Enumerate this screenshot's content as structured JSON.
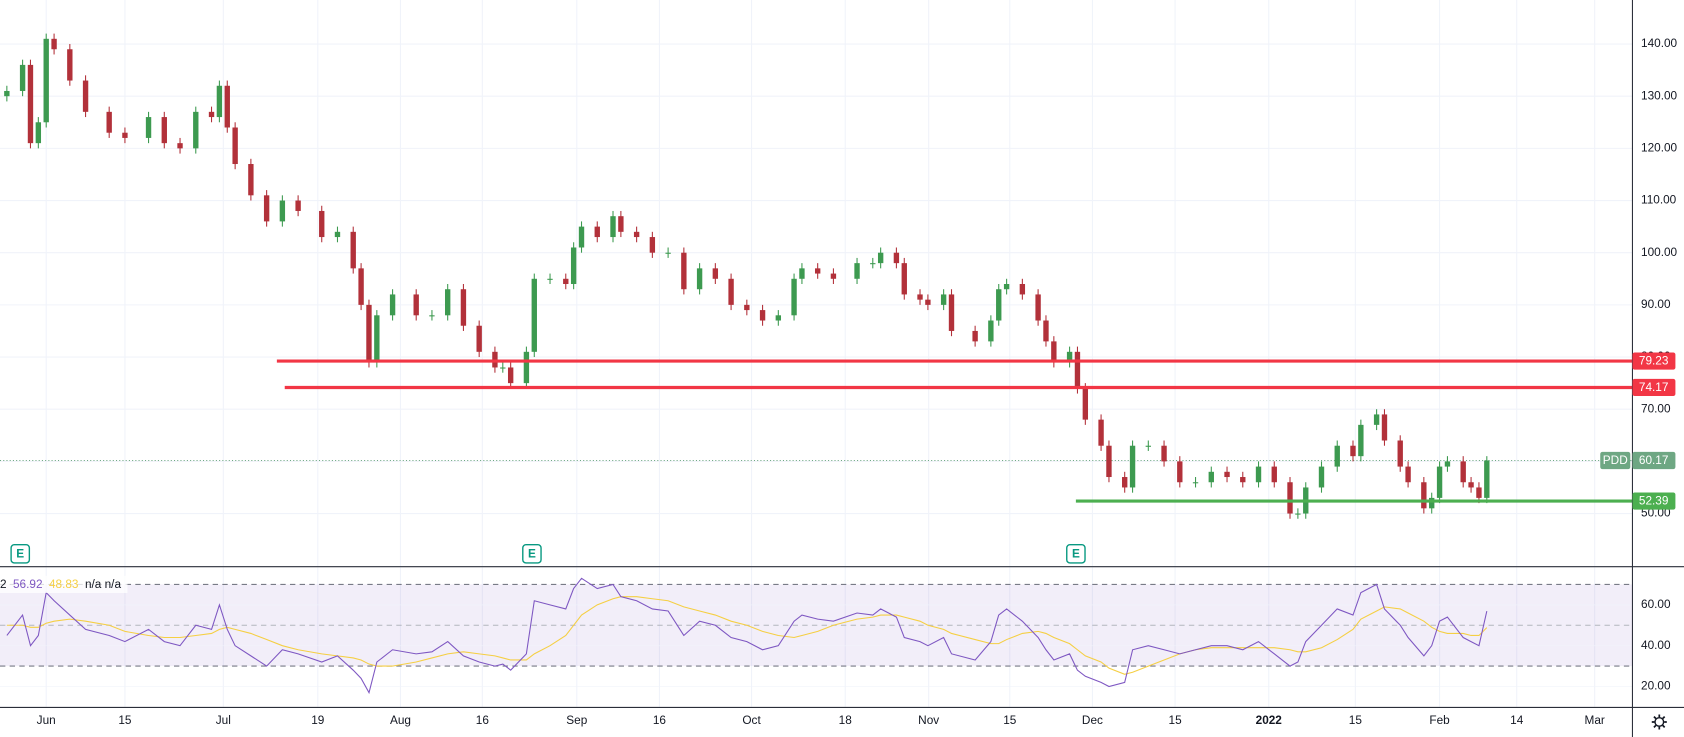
{
  "chart_data": {
    "type": "candlestick",
    "symbol": "PDD",
    "up_color": "#3d9a50",
    "down_color": "#b2313a",
    "last_color": "#6ea783",
    "grid": true,
    "xlim": [
      -5.87,
      201.5
    ],
    "ylim": [
      39.91,
      148.44
    ],
    "yticks": [
      {
        "value": 50,
        "label": "50.00"
      },
      {
        "value": 60,
        "label": "60.00"
      },
      {
        "value": 70,
        "label": "70.00"
      },
      {
        "value": 80,
        "label": "80.00"
      },
      {
        "value": 90,
        "label": "90.00"
      },
      {
        "value": 100,
        "label": "100.00"
      },
      {
        "value": 110,
        "label": "110.00"
      },
      {
        "value": 120,
        "label": "120.00"
      },
      {
        "value": 130,
        "label": "130.00"
      },
      {
        "value": 140,
        "label": "140.00"
      }
    ],
    "xticks": [
      {
        "value": 0,
        "label": "Jun"
      },
      {
        "value": 10,
        "label": "15"
      },
      {
        "value": 22.5,
        "label": "Jul"
      },
      {
        "value": 34.5,
        "label": "19"
      },
      {
        "value": 45,
        "label": "Aug"
      },
      {
        "value": 55.4,
        "label": "16"
      },
      {
        "value": 67.4,
        "label": "Sep"
      },
      {
        "value": 77.9,
        "label": "16"
      },
      {
        "value": 89.6,
        "label": "Oct"
      },
      {
        "value": 101.5,
        "label": "18"
      },
      {
        "value": 112.1,
        "label": "Nov"
      },
      {
        "value": 122.4,
        "label": "15"
      },
      {
        "value": 132.9,
        "label": "Dec"
      },
      {
        "value": 143.4,
        "label": "15"
      },
      {
        "value": 155.3,
        "label": "2022"
      },
      {
        "value": 166.3,
        "label": "15"
      },
      {
        "value": 177,
        "label": "Feb"
      },
      {
        "value": 186.8,
        "label": "14"
      },
      {
        "value": 196.7,
        "label": "Mar"
      }
    ],
    "x": [
      -5,
      -3,
      -2,
      -1,
      0,
      1,
      3,
      5,
      8,
      10,
      13,
      15,
      17,
      19,
      21,
      22,
      23,
      24,
      26,
      28,
      30,
      32,
      35,
      37,
      39,
      40,
      41,
      42,
      44,
      47,
      49,
      51,
      53,
      55,
      57,
      58,
      59,
      61,
      62,
      64,
      66,
      67,
      68,
      70,
      72,
      73,
      75,
      77,
      79,
      81,
      83,
      85,
      87,
      89,
      91,
      93,
      95,
      96,
      98,
      100,
      103,
      105,
      106,
      108,
      109,
      111,
      112,
      114,
      115,
      118,
      120,
      121,
      122,
      124,
      126,
      127,
      128,
      130,
      131,
      132,
      134,
      135,
      137,
      138,
      140,
      142,
      144,
      146,
      148,
      150,
      152,
      154,
      156,
      158,
      159,
      160,
      162,
      164,
      166,
      167,
      169,
      170,
      172,
      173,
      175,
      176,
      177,
      178,
      180,
      181,
      182,
      183
    ],
    "open": [
      130,
      131,
      136,
      121,
      125,
      141,
      139,
      133,
      127,
      123,
      122,
      126,
      121,
      120,
      127,
      126,
      132,
      124,
      117,
      111,
      106,
      110,
      108,
      103,
      104,
      97,
      90,
      79,
      88,
      92,
      88,
      88,
      93,
      86,
      81,
      78,
      78,
      75,
      81,
      95,
      95,
      94,
      101,
      105,
      103,
      107,
      104,
      103,
      100,
      100,
      93,
      97,
      95,
      90,
      89,
      87,
      88,
      95,
      97,
      96,
      95,
      98,
      98,
      100,
      98,
      92,
      91,
      90,
      92,
      85,
      83,
      87,
      93,
      94,
      92,
      87,
      83,
      79,
      81,
      74,
      68,
      63,
      57,
      55,
      63,
      63,
      60,
      56,
      56,
      58,
      57,
      56,
      59,
      56,
      50,
      50,
      55,
      59,
      63,
      61,
      67,
      69,
      64,
      59,
      56,
      51,
      53,
      59,
      60,
      56,
      55,
      53
    ],
    "high": [
      132,
      137,
      137,
      126,
      142,
      142,
      140,
      134,
      128,
      124,
      127,
      127,
      122,
      128,
      128,
      133,
      133,
      125,
      118,
      112,
      111,
      111,
      109,
      105,
      105,
      98,
      91,
      89,
      93,
      93,
      89,
      94,
      94,
      87,
      82,
      79,
      79,
      82,
      96,
      96,
      96,
      102,
      106,
      106,
      108,
      108,
      105,
      104,
      101,
      101,
      98,
      98,
      96,
      91,
      90,
      89,
      96,
      98,
      98,
      97,
      99,
      99,
      101,
      101,
      99,
      93,
      92,
      93,
      93,
      86,
      88,
      94,
      95,
      95,
      93,
      88,
      84,
      82,
      82,
      75,
      69,
      64,
      58,
      64,
      64,
      64,
      61,
      57,
      59,
      59,
      58,
      60,
      60,
      57,
      51,
      56,
      60,
      64,
      64,
      68,
      70,
      70,
      65,
      60,
      57,
      54,
      60,
      61,
      61,
      57,
      56,
      61
    ],
    "low": [
      129,
      130,
      120,
      120,
      124,
      138,
      132,
      126,
      122,
      121,
      121,
      120,
      119,
      119,
      125,
      125,
      123,
      116,
      110,
      105,
      105,
      107,
      102,
      102,
      96,
      89,
      78,
      78,
      87,
      87,
      87,
      87,
      85,
      80,
      77,
      77,
      74,
      74,
      80,
      94,
      93,
      93,
      100,
      102,
      102,
      103,
      102,
      99,
      99,
      92,
      92,
      94,
      89,
      88,
      86,
      86,
      87,
      94,
      95,
      94,
      94,
      97,
      97,
      97,
      91,
      90,
      89,
      89,
      84,
      82,
      82,
      86,
      92,
      91,
      86,
      82,
      78,
      78,
      73,
      67,
      62,
      56,
      54,
      54,
      62,
      59,
      55,
      55,
      55,
      56,
      55,
      55,
      55,
      49,
      49,
      49,
      54,
      58,
      60,
      60,
      66,
      63,
      58,
      55,
      50,
      50,
      52,
      58,
      55,
      54,
      52,
      52
    ],
    "close": [
      131,
      136,
      121,
      125,
      141,
      139,
      133,
      127,
      123,
      122,
      126,
      121,
      120,
      127,
      126,
      132,
      124,
      117,
      111,
      106,
      110,
      108,
      103,
      104,
      97,
      90,
      79,
      88,
      92,
      88,
      88,
      93,
      86,
      81,
      78,
      78,
      75,
      81,
      95,
      95,
      94,
      101,
      105,
      103,
      107,
      104,
      103,
      100,
      100,
      93,
      97,
      95,
      90,
      89,
      87,
      88,
      95,
      97,
      96,
      95,
      98,
      98,
      100,
      98,
      92,
      91,
      90,
      92,
      85,
      83,
      87,
      93,
      94,
      92,
      87,
      83,
      79,
      81,
      74,
      68,
      63,
      57,
      55,
      63,
      63,
      60,
      56,
      56,
      58,
      57,
      56,
      59,
      56,
      50,
      50,
      55,
      59,
      63,
      61,
      67,
      69,
      64,
      59,
      56,
      51,
      53,
      59,
      60,
      56,
      55,
      53,
      60.17
    ],
    "levels": [
      {
        "value": 79.23,
        "start": 29.3,
        "color": "#f23645"
      },
      {
        "value": 74.17,
        "start": 30.3,
        "color": "#f23645"
      },
      {
        "value": 52.39,
        "start": 130.8,
        "color": "#4caf50"
      }
    ],
    "events": [
      {
        "x": -3.3,
        "label": "E"
      },
      {
        "x": 61.7,
        "label": "E"
      },
      {
        "x": 130.8,
        "label": "E"
      }
    ],
    "rsi": {
      "prefix": "2",
      "extra": "n/a n/a",
      "color": "#7e57c2",
      "ma_color": "#f5cf43",
      "ylim": [
        10,
        78.4
      ],
      "yticks": [
        {
          "value": 20,
          "label": "20.00"
        },
        {
          "value": 40,
          "label": "40.00"
        },
        {
          "value": 60,
          "label": "60.00"
        }
      ],
      "band": [
        30,
        70
      ],
      "midline": 50,
      "values": [
        45,
        55,
        40,
        45,
        66,
        62,
        55,
        48,
        45,
        42,
        48,
        42,
        40,
        50,
        48,
        60,
        48,
        40,
        35,
        30,
        38,
        36,
        32,
        35,
        28,
        24,
        17,
        32,
        38,
        36,
        37,
        42,
        35,
        32,
        30,
        31,
        28,
        36,
        62,
        60,
        58,
        68,
        73,
        68,
        70,
        64,
        62,
        58,
        57,
        45,
        52,
        50,
        44,
        42,
        38,
        40,
        52,
        55,
        53,
        52,
        56,
        55,
        58,
        54,
        44,
        42,
        40,
        44,
        36,
        33,
        42,
        55,
        58,
        52,
        44,
        38,
        33,
        36,
        28,
        25,
        22,
        20,
        22,
        38,
        40,
        38,
        36,
        38,
        40,
        40,
        38,
        42,
        36,
        30,
        32,
        42,
        50,
        58,
        55,
        66,
        70,
        58,
        50,
        44,
        35,
        40,
        52,
        54,
        44,
        42,
        40,
        56.92
      ],
      "ma_values": [
        50,
        50,
        49,
        49,
        51,
        52,
        53,
        52,
        50,
        47,
        45,
        44,
        44,
        45,
        46,
        48,
        49,
        48,
        46,
        43,
        40,
        38,
        36,
        35,
        34,
        33,
        31,
        30,
        30,
        32,
        34,
        36,
        37,
        36,
        35,
        34,
        33,
        33,
        36,
        40,
        45,
        50,
        55,
        60,
        63,
        64,
        64,
        63,
        62,
        59,
        57,
        55,
        52,
        50,
        47,
        45,
        44,
        45,
        47,
        50,
        53,
        54,
        55,
        55,
        54,
        52,
        50,
        48,
        46,
        43,
        41,
        41,
        43,
        46,
        47,
        46,
        44,
        41,
        38,
        35,
        32,
        29,
        26,
        27,
        30,
        33,
        36,
        38,
        39,
        39,
        39,
        39,
        39,
        38,
        37,
        37,
        39,
        43,
        48,
        53,
        57,
        59,
        58,
        56,
        52,
        49,
        47,
        46,
        46,
        45,
        45,
        48.83
      ]
    }
  }
}
